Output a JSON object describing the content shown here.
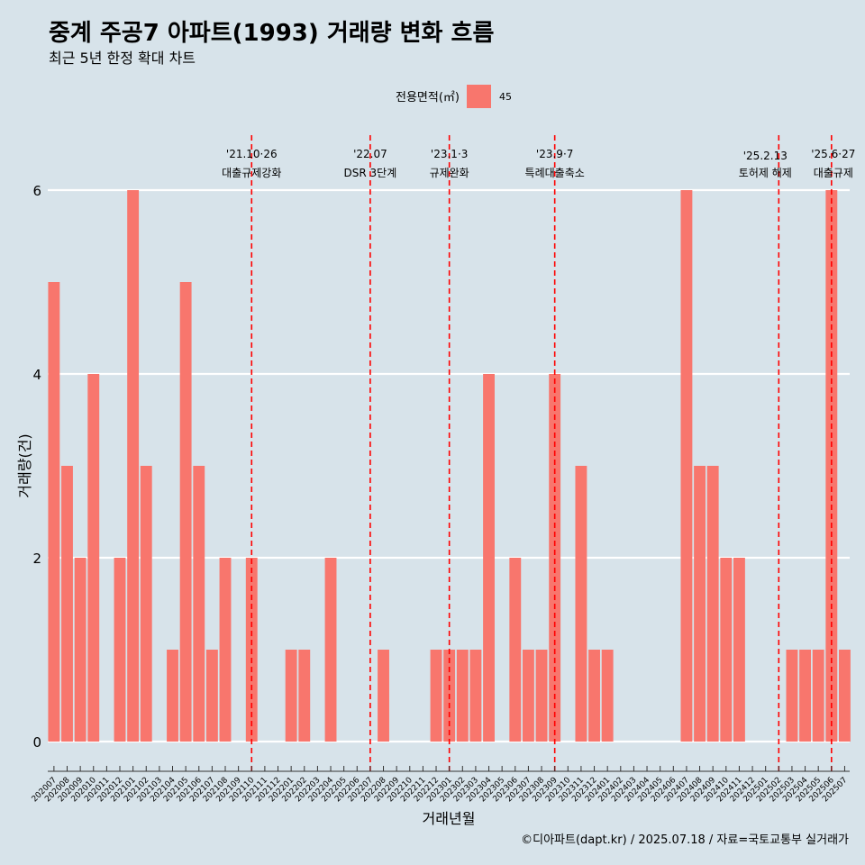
{
  "title": "중계 주공7 아파트(1993) 거래량 변화 흐름",
  "subtitle": "최근 5년 한정 확대 차트",
  "caption": "©디아파트(dapt.kr) / 2025.07.18 / 자료=국토교통부 실거래가",
  "colors": {
    "background": "#d7e3ea",
    "bar": "#f8766d",
    "vline": "#ff0000",
    "grid": "#ffffff"
  },
  "chart_data": {
    "type": "bar",
    "xlabel": "거래년월",
    "ylabel": "거래량(건)",
    "ylim": [
      0,
      6
    ],
    "yticks": [
      0,
      2,
      4,
      6
    ],
    "grid": true,
    "legend": {
      "title": "전용면적(㎡)",
      "position": "top",
      "entries": [
        "45"
      ]
    },
    "categories": [
      "202007",
      "202008",
      "202009",
      "202010",
      "202011",
      "202012",
      "202101",
      "202102",
      "202103",
      "202104",
      "202105",
      "202106",
      "202107",
      "202108",
      "202109",
      "202110",
      "202111",
      "202112",
      "202201",
      "202202",
      "202203",
      "202204",
      "202205",
      "202206",
      "202207",
      "202208",
      "202209",
      "202210",
      "202211",
      "202212",
      "202301",
      "202302",
      "202303",
      "202304",
      "202305",
      "202306",
      "202307",
      "202308",
      "202309",
      "202310",
      "202311",
      "202312",
      "202401",
      "202402",
      "202403",
      "202404",
      "202405",
      "202406",
      "202407",
      "202408",
      "202409",
      "202410",
      "202411",
      "202412",
      "202501",
      "202502",
      "202503",
      "202504",
      "202505",
      "202506",
      "202507"
    ],
    "series": [
      {
        "name": "45",
        "values": [
          5,
          3,
          2,
          4,
          0,
          2,
          6,
          3,
          0,
          1,
          5,
          3,
          1,
          2,
          0,
          2,
          0,
          0,
          1,
          1,
          0,
          2,
          0,
          0,
          0,
          1,
          0,
          0,
          0,
          1,
          1,
          1,
          1,
          4,
          0,
          2,
          1,
          1,
          4,
          0,
          3,
          1,
          1,
          0,
          0,
          0,
          0,
          0,
          6,
          3,
          3,
          2,
          2,
          0,
          0,
          0,
          1,
          1,
          1,
          6,
          1
        ]
      }
    ],
    "annotations": [
      {
        "x": "202110",
        "date": "'21.10·26",
        "label": "대출규제강화"
      },
      {
        "x": "202207",
        "date": "'22.07",
        "label": "DSR 3단계"
      },
      {
        "x": "202301",
        "date": "'23.1·3",
        "label": "규제완화"
      },
      {
        "x": "202309",
        "date": "'23.9·7",
        "label": "특례대출축소"
      },
      {
        "x": "202502",
        "date": "'25.2.13",
        "label": "토허제 해제"
      },
      {
        "x": "202506",
        "date": "'25.6·27",
        "label": "대출규제"
      }
    ]
  }
}
